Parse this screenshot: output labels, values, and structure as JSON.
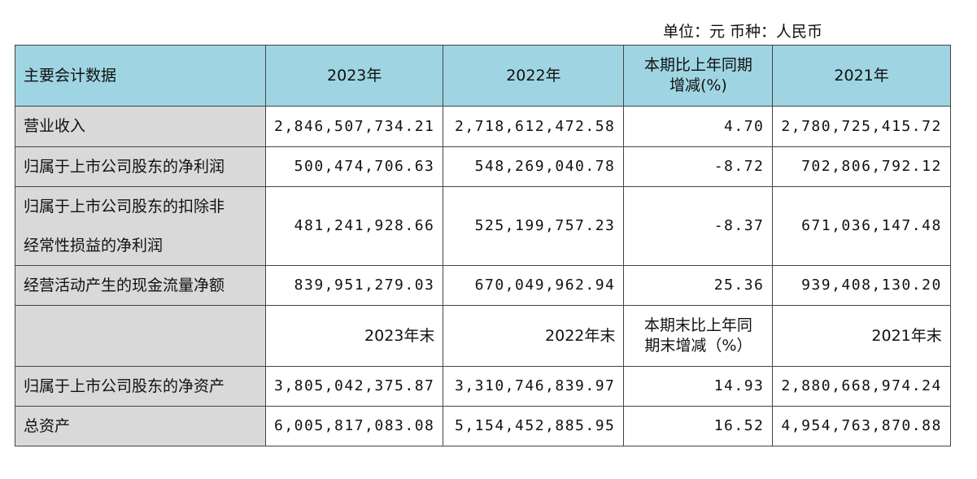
{
  "unit": "单位：元 币种：人民币",
  "table": {
    "header": [
      "主要会计数据",
      "2023年",
      "2022年",
      "本期比上年同期增减(%)",
      "2021年"
    ],
    "rows": [
      [
        "营业收入",
        "2,846,507,734.21",
        "2,718,612,472.58",
        "4.70",
        "2,780,725,415.72"
      ],
      [
        "归属于上市公司股东的净利润",
        "500,474,706.63",
        "548,269,040.78",
        "-8.72",
        "702,806,792.12"
      ],
      [
        "归属于上市公司股东的扣除非经常性损益的净利润",
        "481,241,928.66",
        "525,199,757.23",
        "-8.37",
        "671,036,147.48"
      ],
      [
        "经营活动产生的现金流量净额",
        "839,951,279.03",
        "670,049,962.94",
        "25.36",
        "939,408,130.20"
      ],
      [
        "归属于上市公司股东的净资产",
        "3,805,042,375.87",
        "3,310,746,839.97",
        "14.93",
        "2,880,668,974.24"
      ],
      [
        "总资产",
        "6,005,817,083.08",
        "5,154,452,885.95",
        "16.52",
        "4,954,763,870.88"
      ]
    ],
    "subheader": [
      "2023年末",
      "2022年末",
      "本期末比上年同期末增减（%）",
      "2021年末"
    ]
  }
}
